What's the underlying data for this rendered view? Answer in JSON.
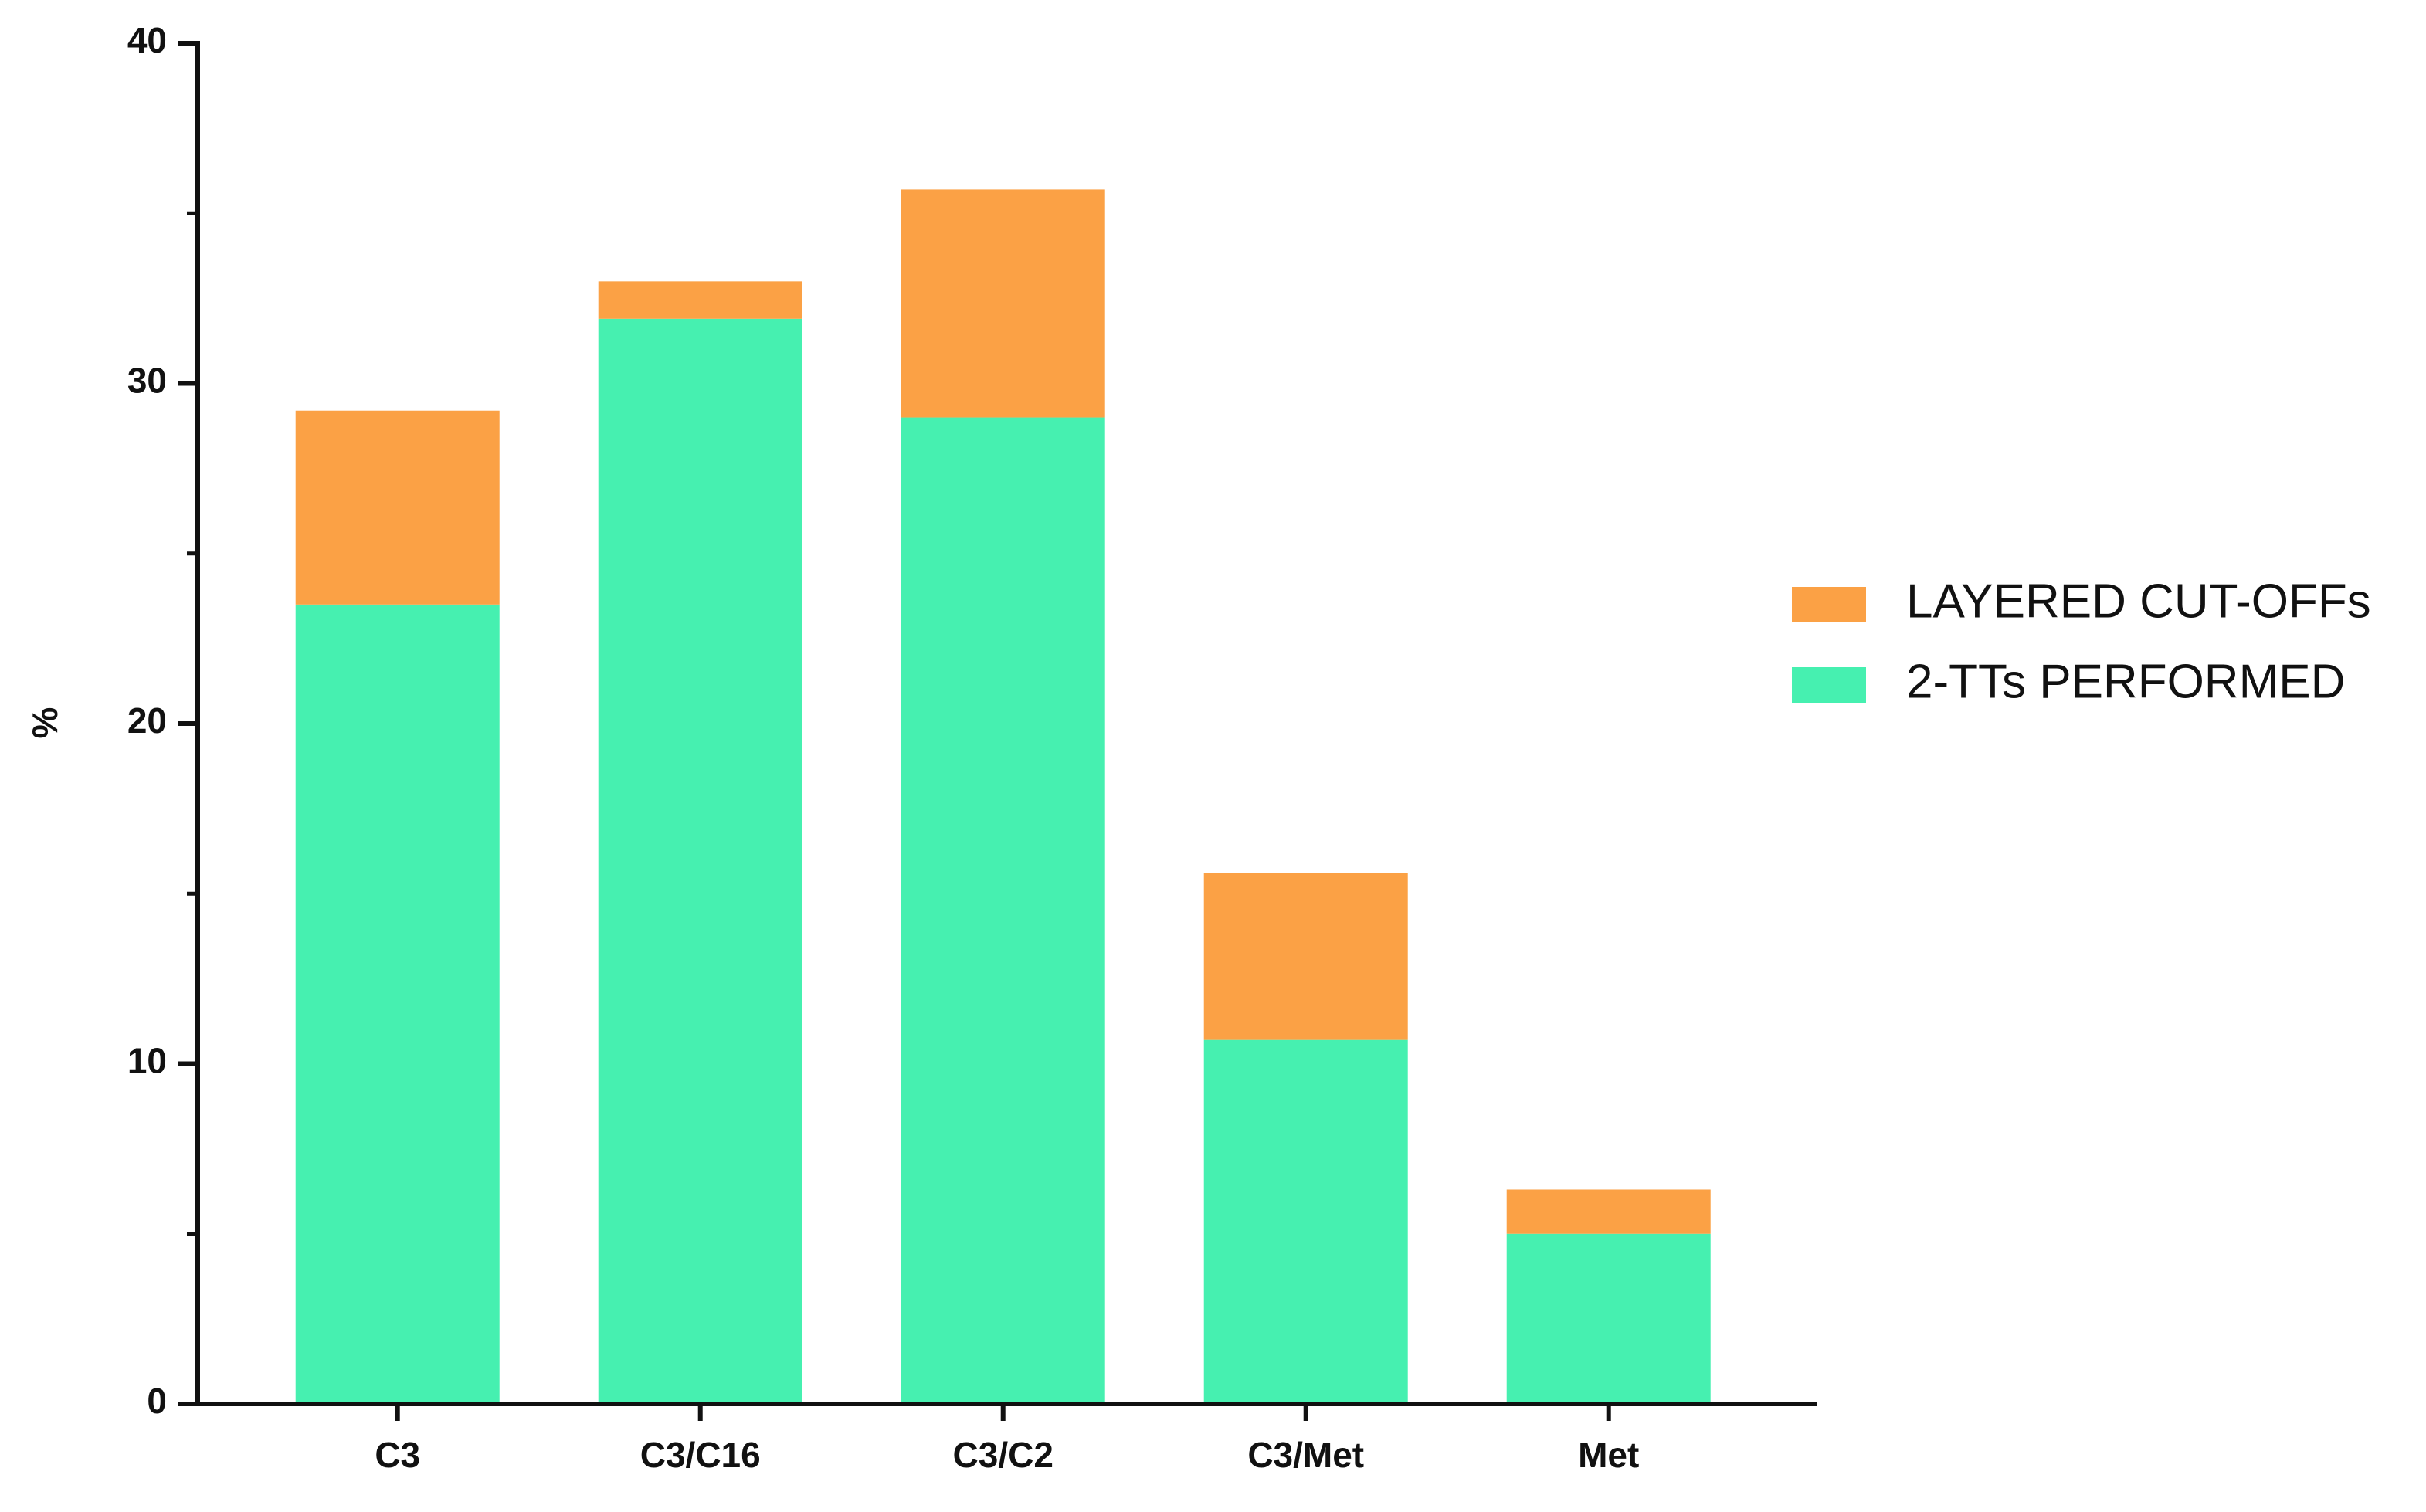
{
  "chart_data": {
    "type": "stacked_bar",
    "y_label": "%",
    "categories": [
      "C3",
      "C3/C16",
      "C3/C2",
      "C3/Met",
      "Met"
    ],
    "series": [
      {
        "name": "2-TTs PERFORMED",
        "color": "#46f0b0",
        "values": [
          23.5,
          31.9,
          29.0,
          10.7,
          5.0
        ]
      },
      {
        "name": "LAYERED CUT-OFFs",
        "color": "#fba145",
        "values": [
          5.7,
          1.1,
          6.7,
          4.9,
          1.3
        ]
      }
    ],
    "ylim": [
      0,
      40
    ],
    "yticks": [
      0,
      10,
      20,
      30,
      40
    ],
    "yminor_ticks": [
      5,
      15,
      25,
      35
    ],
    "legend": "right"
  }
}
